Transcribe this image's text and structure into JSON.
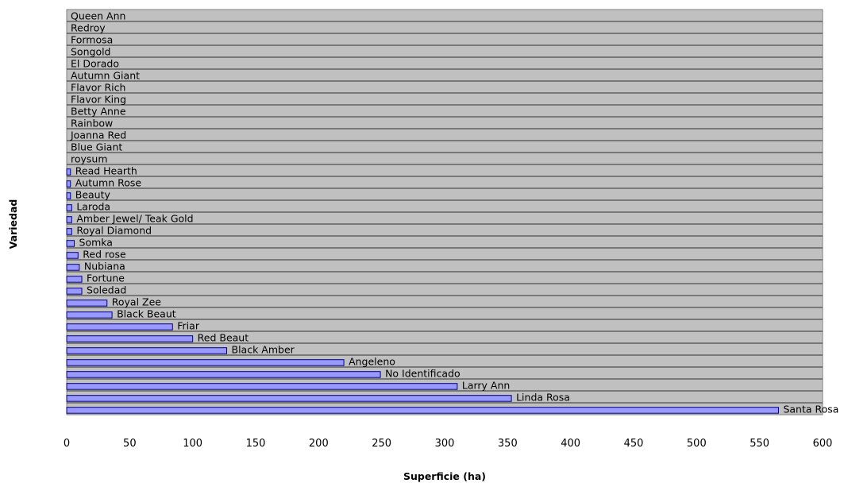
{
  "chart_data": {
    "type": "bar",
    "orientation": "horizontal",
    "xlabel": "Superficie (ha)",
    "ylabel": "Variedad",
    "xlim": [
      0,
      600
    ],
    "xticks": [
      0,
      50,
      100,
      150,
      200,
      250,
      300,
      350,
      400,
      450,
      500,
      550,
      600
    ],
    "grid": true,
    "legend": "none",
    "colors": {
      "plot_background": "#c0c0c0",
      "bar_fill": "#9999ff",
      "bar_stroke": "#000080",
      "grid": "#000000"
    },
    "categories": [
      "Queen Ann",
      "Redroy",
      "Formosa",
      "Songold",
      "El Dorado",
      "Autumn Giant",
      "Flavor Rich",
      "Flavor King",
      "Betty Anne",
      "Rainbow",
      "Joanna Red",
      "Blue Giant",
      "roysum",
      "Read Hearth",
      "Autumn Rose",
      "Beauty",
      "Laroda",
      "Amber Jewel/ Teak Gold",
      "Royal Diamond",
      "Somka",
      "Red rose",
      "Nubiana",
      "Fortune",
      "Soledad",
      "Royal Zee",
      "Black Beaut",
      "Friar",
      "Red Beaut",
      "Black Amber",
      "Angeleno",
      "No Identificado",
      "Larry Ann",
      "Linda Rosa",
      "Santa Rosa"
    ],
    "values": [
      0,
      0,
      0,
      0,
      0,
      0,
      0,
      0,
      0,
      0,
      0,
      0,
      0,
      3,
      3,
      3,
      4,
      4,
      4,
      6,
      9,
      10,
      12,
      12,
      32,
      36,
      84,
      100,
      127,
      220,
      249,
      310,
      353,
      565
    ]
  }
}
